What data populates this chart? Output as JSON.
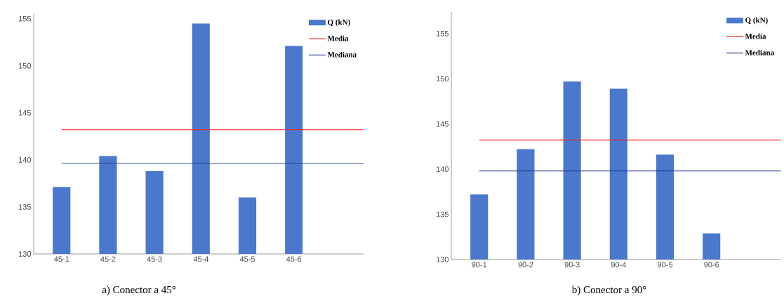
{
  "chart_data": [
    {
      "type": "bar",
      "categories": [
        "45-1",
        "45-2",
        "45-3",
        "45-4",
        "45-5",
        "45-6"
      ],
      "series": [
        {
          "name": "Q (kN)",
          "color": "#4a78cc",
          "values": [
            137.1,
            140.4,
            138.8,
            154.5,
            136.0,
            152.1
          ]
        }
      ],
      "ylim": [
        130,
        155.5
      ],
      "yticks": [
        130,
        135,
        140,
        145,
        150,
        155
      ],
      "ref_lines": [
        {
          "axis": "y",
          "value": 143.2,
          "label": "Media",
          "color": "#ff2020"
        },
        {
          "axis": "y",
          "value": 139.6,
          "label": "Mediana",
          "color": "#1f3f8f"
        }
      ],
      "legend": "top right",
      "grid": false,
      "annotations": [
        "a)      Conector a 45°"
      ]
    },
    {
      "type": "bar",
      "categories": [
        "90-1",
        "90-2",
        "90-3",
        "90-4",
        "90-5",
        "90-6"
      ],
      "series": [
        {
          "name": "Q (kN)",
          "color": "#4a78cc",
          "values": [
            137.2,
            142.2,
            149.7,
            148.9,
            141.6,
            132.9
          ]
        }
      ],
      "ylim": [
        130,
        157.4
      ],
      "yticks": [
        130,
        135,
        140,
        145,
        150,
        155
      ],
      "ref_lines": [
        {
          "axis": "y",
          "value": 143.2,
          "label": "Media",
          "color": "#ff2020"
        },
        {
          "axis": "y",
          "value": 139.8,
          "label": "Mediana",
          "color": "#1f3f8f"
        }
      ],
      "legend": "top right",
      "grid": false,
      "annotations": [
        "b) Conector a 90°"
      ]
    }
  ]
}
